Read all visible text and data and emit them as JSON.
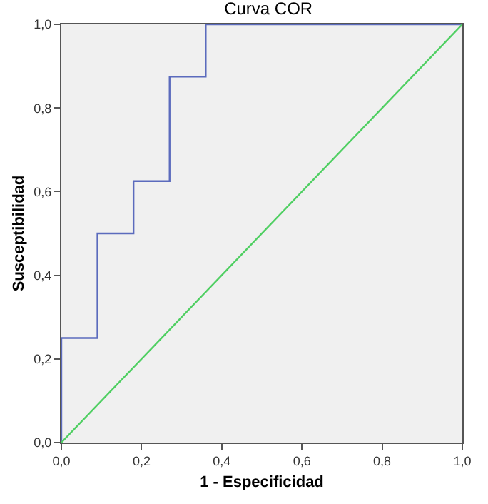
{
  "chart_data": {
    "type": "line",
    "title": "Curva COR",
    "xlabel": "1 - Especificidad",
    "ylabel": "Susceptibilidad",
    "xlim": [
      0,
      1
    ],
    "ylim": [
      0,
      1
    ],
    "xticks": [
      {
        "value": 0,
        "label": "0,0"
      },
      {
        "value": 0.2,
        "label": "0,2"
      },
      {
        "value": 0.4,
        "label": "0,4"
      },
      {
        "value": 0.6,
        "label": "0,6"
      },
      {
        "value": 0.8,
        "label": "0,8"
      },
      {
        "value": 1,
        "label": "1,0"
      }
    ],
    "yticks": [
      {
        "value": 0,
        "label": "0,0"
      },
      {
        "value": 0.2,
        "label": "0,2"
      },
      {
        "value": 0.4,
        "label": "0,4"
      },
      {
        "value": 0.6,
        "label": "0,6"
      },
      {
        "value": 0.8,
        "label": "0,8"
      },
      {
        "value": 1,
        "label": "1,0"
      }
    ],
    "grid": false,
    "marker": "none",
    "line_style": "solid",
    "series": [
      {
        "color": "#5b6bbd",
        "x": [
          0,
          0,
          0.09,
          0.09,
          0.18,
          0.18,
          0.27,
          0.27,
          0.36,
          0.36,
          1
        ],
        "values": [
          0,
          0.25,
          0.25,
          0.5,
          0.5,
          0.625,
          0.625,
          0.875,
          0.875,
          1,
          1
        ]
      },
      {
        "color": "#4fcf62",
        "x": [
          0,
          1
        ],
        "values": [
          0,
          1
        ]
      }
    ]
  }
}
